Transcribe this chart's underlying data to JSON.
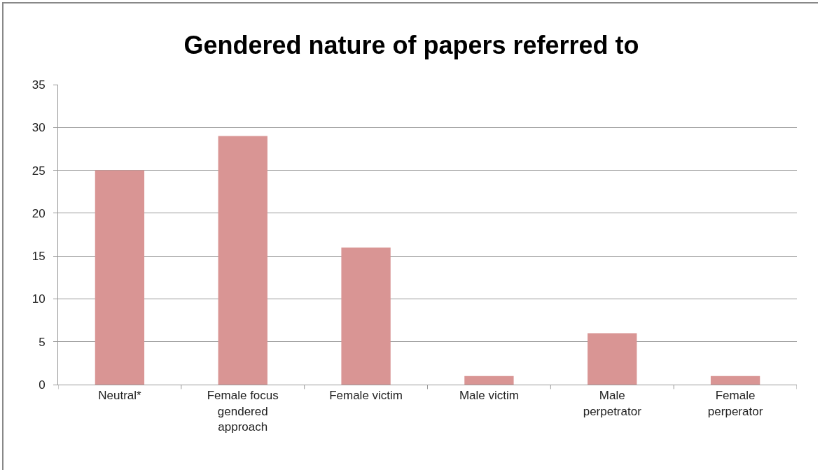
{
  "chart_data": {
    "type": "bar",
    "title": "Gendered nature of papers referred to",
    "categories": [
      "Neutral*",
      "Female focus gendered approach",
      "Female victim",
      "Male victim",
      "Male perpetrator",
      "Female perperator"
    ],
    "values": [
      25,
      29,
      16,
      1,
      6,
      1
    ],
    "color": "#d99594",
    "ylim": [
      0,
      35
    ],
    "yticks": [
      0,
      5,
      10,
      15,
      20,
      25,
      30,
      35
    ],
    "grid": "y"
  }
}
